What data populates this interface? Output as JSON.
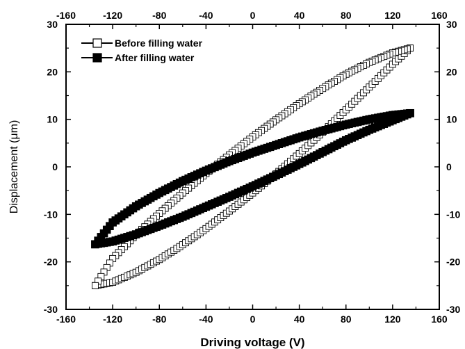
{
  "chart_data": {
    "type": "scatter",
    "xlabel": "Driving voltage (V)",
    "ylabel": "Displacement (μm)",
    "xlim": [
      -160,
      160
    ],
    "ylim": [
      -30,
      30
    ],
    "x_ticks": [
      -160,
      -120,
      -80,
      -40,
      0,
      40,
      80,
      120,
      160
    ],
    "y_ticks": [
      -30,
      -20,
      -10,
      0,
      10,
      20,
      30
    ],
    "mirror_axes": true,
    "grid": false,
    "legend_position": "top-left",
    "series": [
      {
        "name": "Before filling water",
        "marker": "open-square",
        "color": "#000000",
        "branches": [
          {
            "label": "ascending",
            "x": [
              -135,
              -120,
              -100,
              -80,
              -60,
              -40,
              -20,
              0,
              20,
              40,
              60,
              80,
              100,
              120,
              135
            ],
            "y": [
              -25,
              -24.3,
              -22.2,
              -19.5,
              -16.4,
              -13.0,
              -9.3,
              -5.5,
              -1.5,
              2.8,
              7.3,
              12.0,
              16.8,
              21.6,
              25
            ]
          },
          {
            "label": "descending",
            "x": [
              135,
              120,
              100,
              80,
              60,
              40,
              20,
              0,
              -20,
              -40,
              -60,
              -80,
              -100,
              -120,
              -135
            ],
            "y": [
              25,
              24.0,
              22.0,
              19.5,
              16.5,
              13.3,
              9.9,
              6.3,
              2.5,
              -1.4,
              -5.5,
              -9.8,
              -14.3,
              -19.3,
              -25
            ]
          }
        ]
      },
      {
        "name": "After filling water",
        "marker": "filled-square",
        "color": "#000000",
        "branches": [
          {
            "label": "ascending",
            "x": [
              -135,
              -120,
              -100,
              -80,
              -60,
              -40,
              -20,
              0,
              20,
              40,
              60,
              80,
              100,
              120,
              135
            ],
            "y": [
              -16.3,
              -15.7,
              -14.2,
              -12.4,
              -10.5,
              -8.4,
              -6.3,
              -4.1,
              -1.8,
              0.6,
              3.1,
              5.6,
              7.8,
              9.8,
              11.3
            ]
          },
          {
            "label": "descending",
            "x": [
              135,
              120,
              100,
              80,
              60,
              40,
              20,
              0,
              -20,
              -40,
              -60,
              -80,
              -100,
              -120,
              -135
            ],
            "y": [
              11.3,
              10.9,
              10.0,
              8.9,
              7.6,
              6.2,
              4.6,
              3.0,
              1.2,
              -0.8,
              -3.0,
              -5.5,
              -8.3,
              -11.7,
              -16.3
            ]
          }
        ]
      }
    ]
  }
}
